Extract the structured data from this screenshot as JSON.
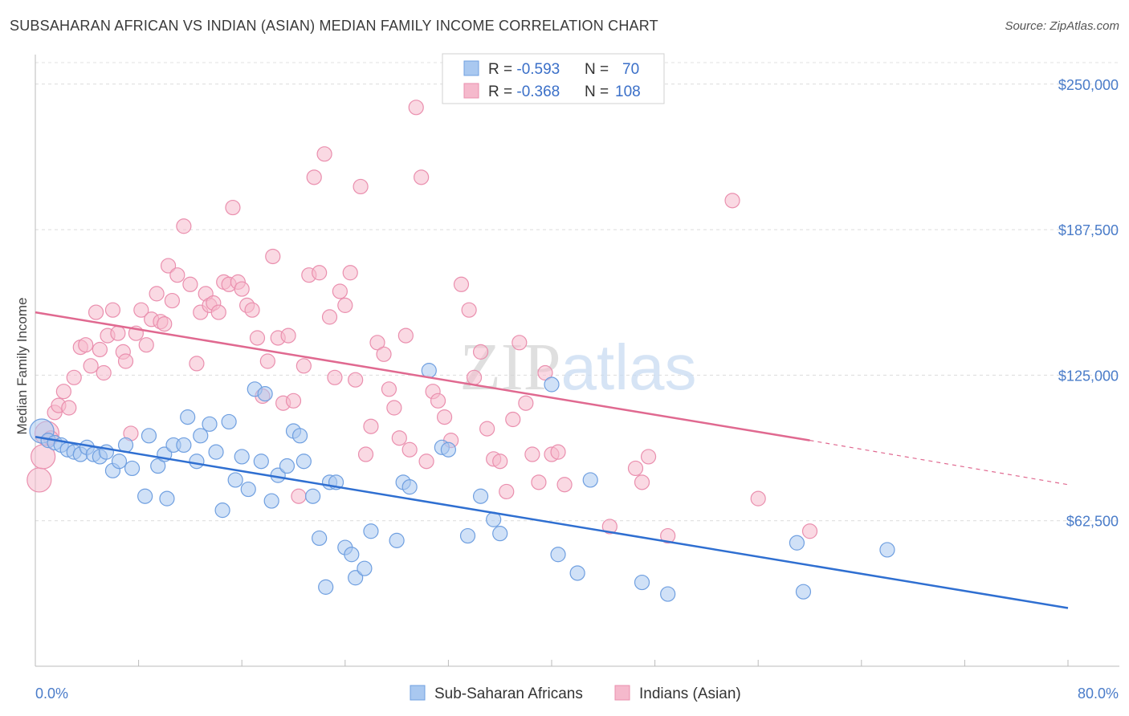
{
  "title": "SUBSAHARAN AFRICAN VS INDIAN (ASIAN) MEDIAN FAMILY INCOME CORRELATION CHART",
  "source": "Source: ZipAtlas.com",
  "watermark": "ZIPatlas",
  "colors": {
    "blue_fill": "#a9c8f0",
    "blue_stroke": "#6f9fe0",
    "blue_line": "#2f6fd1",
    "pink_fill": "#f5b9cc",
    "pink_stroke": "#ea8fae",
    "pink_line": "#e06990",
    "axis_label": "#4a7cc9"
  },
  "legend": {
    "items": [
      {
        "r_label": "R = ",
        "r_value": "-0.593",
        "n_label": "N = ",
        "n_value": "70"
      },
      {
        "r_label": "R = ",
        "r_value": "-0.368",
        "n_label": "N = ",
        "n_value": "108"
      }
    ]
  },
  "bottom_legend": [
    "Sub-Saharan Africans",
    "Indians (Asian)"
  ],
  "chart_data": {
    "type": "scatter",
    "title": "SUBSAHARAN AFRICAN VS INDIAN (ASIAN) MEDIAN FAMILY INCOME CORRELATION CHART",
    "ylabel": "Median Family Income",
    "xlim": [
      0,
      80
    ],
    "ylim": [
      0,
      262000
    ],
    "x_tick_labels": [
      "0.0%",
      "80.0%"
    ],
    "y_ticks": [
      62500,
      125000,
      187500,
      250000
    ],
    "y_tick_labels": [
      "$62,500",
      "$125,000",
      "$187,500",
      "$250,000"
    ],
    "grid": "horizontal dashed",
    "legend_position": "top-center",
    "series": [
      {
        "name": "Sub-Saharan Africans",
        "R": -0.593,
        "N": 70,
        "trend": {
          "x": [
            0,
            80
          ],
          "y": [
            98500,
            25000
          ]
        },
        "points": [
          [
            0.5,
            101000
          ],
          [
            1.0,
            97000
          ],
          [
            1.5,
            96000
          ],
          [
            2.0,
            95000
          ],
          [
            2.5,
            93000
          ],
          [
            3.0,
            92000
          ],
          [
            3.5,
            91000
          ],
          [
            4.0,
            94000
          ],
          [
            4.5,
            91000
          ],
          [
            5.0,
            90000
          ],
          [
            5.5,
            92000
          ],
          [
            6.0,
            84000
          ],
          [
            6.5,
            88000
          ],
          [
            7.0,
            95000
          ],
          [
            7.5,
            85000
          ],
          [
            8.5,
            73000
          ],
          [
            8.8,
            99000
          ],
          [
            9.5,
            86000
          ],
          [
            10.0,
            91000
          ],
          [
            10.2,
            72000
          ],
          [
            10.7,
            95000
          ],
          [
            11.5,
            95000
          ],
          [
            11.8,
            107000
          ],
          [
            12.5,
            88000
          ],
          [
            12.8,
            99000
          ],
          [
            13.5,
            104000
          ],
          [
            14.0,
            92000
          ],
          [
            14.5,
            67000
          ],
          [
            15.0,
            105000
          ],
          [
            15.5,
            80000
          ],
          [
            16.0,
            90000
          ],
          [
            16.5,
            76000
          ],
          [
            17.0,
            119000
          ],
          [
            17.5,
            88000
          ],
          [
            17.8,
            117000
          ],
          [
            18.3,
            71000
          ],
          [
            18.8,
            82000
          ],
          [
            19.5,
            86000
          ],
          [
            20.0,
            101000
          ],
          [
            20.5,
            99000
          ],
          [
            20.8,
            88000
          ],
          [
            21.5,
            73000
          ],
          [
            22.0,
            55000
          ],
          [
            22.5,
            34000
          ],
          [
            22.8,
            79000
          ],
          [
            23.3,
            79000
          ],
          [
            24.0,
            51000
          ],
          [
            24.5,
            48000
          ],
          [
            24.8,
            38000
          ],
          [
            25.5,
            42000
          ],
          [
            26.0,
            58000
          ],
          [
            28.0,
            54000
          ],
          [
            28.5,
            79000
          ],
          [
            29.0,
            77000
          ],
          [
            30.5,
            127000
          ],
          [
            31.5,
            94000
          ],
          [
            32.0,
            93000
          ],
          [
            33.5,
            56000
          ],
          [
            34.5,
            73000
          ],
          [
            35.5,
            63000
          ],
          [
            36.0,
            57000
          ],
          [
            40.0,
            121000
          ],
          [
            40.5,
            48000
          ],
          [
            42.0,
            40000
          ],
          [
            43.0,
            80000
          ],
          [
            47.0,
            36000
          ],
          [
            49.0,
            31000
          ],
          [
            59.0,
            53000
          ],
          [
            59.5,
            32000
          ],
          [
            66.0,
            50000
          ]
        ]
      },
      {
        "name": "Indians (Asian)",
        "R": -0.368,
        "N": 108,
        "trend": {
          "x": [
            0,
            60
          ],
          "y": [
            152000,
            97000
          ]
        },
        "trend_dashed": {
          "x": [
            60,
            80
          ],
          "y": [
            97000,
            78000
          ]
        },
        "points": [
          [
            0.3,
            80000
          ],
          [
            0.6,
            90000
          ],
          [
            0.9,
            100000
          ],
          [
            1.2,
            98000
          ],
          [
            1.5,
            109000
          ],
          [
            1.8,
            112000
          ],
          [
            2.2,
            118000
          ],
          [
            2.6,
            111000
          ],
          [
            3.0,
            124000
          ],
          [
            3.5,
            137000
          ],
          [
            3.9,
            138000
          ],
          [
            4.3,
            129000
          ],
          [
            4.7,
            152000
          ],
          [
            5.0,
            136000
          ],
          [
            5.3,
            126000
          ],
          [
            5.6,
            142000
          ],
          [
            6.0,
            153000
          ],
          [
            6.4,
            143000
          ],
          [
            6.8,
            135000
          ],
          [
            7.0,
            131000
          ],
          [
            7.4,
            100000
          ],
          [
            7.8,
            143000
          ],
          [
            8.2,
            153000
          ],
          [
            8.6,
            138000
          ],
          [
            9.0,
            149000
          ],
          [
            9.4,
            160000
          ],
          [
            9.7,
            148000
          ],
          [
            10.0,
            147000
          ],
          [
            10.3,
            172000
          ],
          [
            10.6,
            157000
          ],
          [
            11.0,
            168000
          ],
          [
            11.5,
            189000
          ],
          [
            12.0,
            164000
          ],
          [
            12.5,
            130000
          ],
          [
            12.8,
            152000
          ],
          [
            13.2,
            160000
          ],
          [
            13.5,
            155000
          ],
          [
            13.8,
            156000
          ],
          [
            14.2,
            152000
          ],
          [
            14.6,
            165000
          ],
          [
            15.0,
            164000
          ],
          [
            15.3,
            197000
          ],
          [
            15.7,
            165000
          ],
          [
            16.0,
            162000
          ],
          [
            16.4,
            155000
          ],
          [
            16.8,
            153000
          ],
          [
            17.2,
            141000
          ],
          [
            17.6,
            116000
          ],
          [
            18.0,
            131000
          ],
          [
            18.4,
            176000
          ],
          [
            18.8,
            141000
          ],
          [
            19.2,
            113000
          ],
          [
            19.6,
            142000
          ],
          [
            20.0,
            114000
          ],
          [
            20.4,
            73000
          ],
          [
            20.8,
            129000
          ],
          [
            21.2,
            168000
          ],
          [
            21.6,
            210000
          ],
          [
            22.0,
            169000
          ],
          [
            22.4,
            220000
          ],
          [
            22.8,
            150000
          ],
          [
            23.2,
            124000
          ],
          [
            23.6,
            161000
          ],
          [
            24.0,
            155000
          ],
          [
            24.4,
            169000
          ],
          [
            24.8,
            123000
          ],
          [
            25.2,
            206000
          ],
          [
            25.6,
            91000
          ],
          [
            26.0,
            103000
          ],
          [
            26.5,
            139000
          ],
          [
            27.0,
            134000
          ],
          [
            27.4,
            119000
          ],
          [
            27.8,
            111000
          ],
          [
            28.2,
            98000
          ],
          [
            28.7,
            142000
          ],
          [
            29.0,
            93000
          ],
          [
            29.5,
            240000
          ],
          [
            29.9,
            210000
          ],
          [
            30.3,
            88000
          ],
          [
            30.8,
            118000
          ],
          [
            31.2,
            114000
          ],
          [
            31.7,
            107000
          ],
          [
            32.2,
            97000
          ],
          [
            33.0,
            164000
          ],
          [
            33.6,
            153000
          ],
          [
            34.0,
            124000
          ],
          [
            34.5,
            135000
          ],
          [
            35.0,
            102000
          ],
          [
            35.5,
            89000
          ],
          [
            36.0,
            88000
          ],
          [
            36.5,
            75000
          ],
          [
            37.0,
            106000
          ],
          [
            37.5,
            139000
          ],
          [
            38.0,
            113000
          ],
          [
            38.5,
            91000
          ],
          [
            39.0,
            79000
          ],
          [
            39.5,
            126000
          ],
          [
            40.0,
            91000
          ],
          [
            40.5,
            92000
          ],
          [
            41.0,
            78000
          ],
          [
            44.5,
            60000
          ],
          [
            46.5,
            85000
          ],
          [
            47.0,
            79000
          ],
          [
            47.5,
            90000
          ],
          [
            49.0,
            56000
          ],
          [
            54.0,
            200000
          ],
          [
            56.0,
            72000
          ],
          [
            60.0,
            58000
          ]
        ]
      }
    ]
  }
}
